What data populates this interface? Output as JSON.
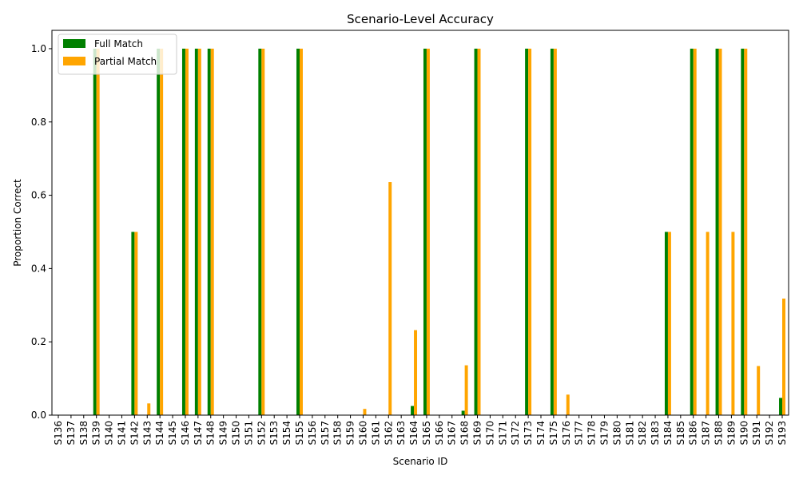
{
  "chart_data": {
    "type": "bar",
    "title": "Scenario-Level Accuracy",
    "xlabel": "Scenario ID",
    "ylabel": "Proportion Correct",
    "ylim": [
      0,
      1.05
    ],
    "yticks": [
      "0.0",
      "0.2",
      "0.4",
      "0.6",
      "0.8",
      "1.0"
    ],
    "grid": false,
    "legend_position": "top-left",
    "categories": [
      "S136",
      "S137",
      "S138",
      "S139",
      "S140",
      "S141",
      "S142",
      "S143",
      "S144",
      "S145",
      "S146",
      "S147",
      "S148",
      "S149",
      "S150",
      "S151",
      "S152",
      "S153",
      "S154",
      "S155",
      "S156",
      "S157",
      "S158",
      "S159",
      "S160",
      "S161",
      "S162",
      "S163",
      "S164",
      "S165",
      "S166",
      "S167",
      "S168",
      "S169",
      "S170",
      "S171",
      "S172",
      "S173",
      "S174",
      "S175",
      "S176",
      "S177",
      "S178",
      "S179",
      "S180",
      "S181",
      "S182",
      "S183",
      "S184",
      "S185",
      "S186",
      "S187",
      "S188",
      "S189",
      "S190",
      "S191",
      "S192",
      "S193"
    ],
    "series": [
      {
        "name": "Full Match",
        "color": "#008000",
        "values": [
          0,
          0,
          0,
          1.0,
          0,
          0,
          0.5,
          0,
          1.0,
          0,
          1.0,
          1.0,
          1.0,
          0,
          0,
          0,
          1.0,
          0,
          0,
          1.0,
          0,
          0,
          0,
          0,
          0,
          0,
          0,
          0,
          0.025,
          1.0,
          0,
          0,
          0.012,
          1.0,
          0,
          0,
          0,
          1.0,
          0,
          1.0,
          0,
          0,
          0,
          0,
          0,
          0,
          0,
          0,
          0.5,
          0,
          1.0,
          0,
          1.0,
          0,
          1.0,
          0,
          0,
          0.047
        ]
      },
      {
        "name": "Partial Match",
        "color": "#FFA500",
        "values": [
          0,
          0,
          0,
          1.0,
          0,
          0,
          0.5,
          0.032,
          1.0,
          0,
          1.0,
          1.0,
          1.0,
          0,
          0,
          0,
          1.0,
          0,
          0,
          1.0,
          0,
          0,
          0,
          0,
          0.017,
          0,
          0.636,
          0,
          0.232,
          1.0,
          0,
          0,
          0.136,
          1.0,
          0,
          0,
          0,
          1.0,
          0,
          1.0,
          0.056,
          0,
          0,
          0,
          0,
          0,
          0,
          0,
          0.5,
          0,
          1.0,
          0.5,
          1.0,
          0.5,
          1.0,
          0.134,
          0,
          0.318
        ]
      }
    ]
  }
}
